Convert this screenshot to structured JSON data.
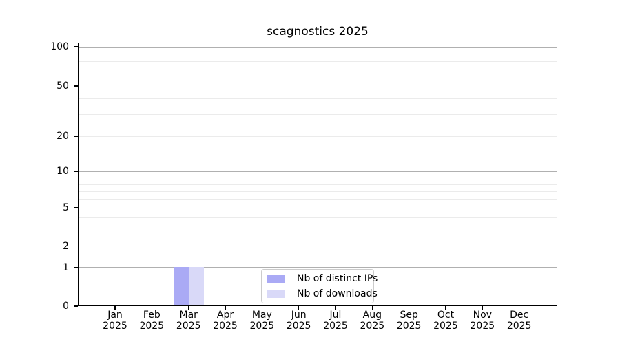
{
  "colors": {
    "distinct_ips": "#aaaaf5",
    "downloads": "#d9d9f8",
    "grid_major": "#b0b0b0",
    "grid_minor": "#ebebeb",
    "axis": "#000000"
  },
  "chart_data": {
    "type": "bar",
    "title": "scagnostics 2025",
    "categories": [
      "Jan 2025",
      "Feb 2025",
      "Mar 2025",
      "Apr 2025",
      "May 2025",
      "Jun 2025",
      "Jul 2025",
      "Aug 2025",
      "Sep 2025",
      "Oct 2025",
      "Nov 2025",
      "Dec 2025"
    ],
    "series": [
      {
        "name": "Nb of distinct IPs",
        "color": "#aaaaf5",
        "values": [
          0,
          0,
          1,
          0,
          0,
          0,
          0,
          0,
          0,
          0,
          0,
          0
        ]
      },
      {
        "name": "Nb of downloads",
        "color": "#d9d9f8",
        "values": [
          0,
          0,
          1,
          0,
          0,
          0,
          0,
          0,
          0,
          0,
          0,
          0
        ]
      }
    ],
    "xlabel": "",
    "ylabel": "",
    "y_axis": {
      "scale": "log-like",
      "tick_values": [
        0,
        1,
        2,
        5,
        10,
        20,
        50,
        100
      ],
      "ylim": [
        0,
        110
      ]
    },
    "grid": true,
    "legend_position": "inside-bottom-center"
  },
  "render": {
    "y_ticks": [
      {
        "label": "100",
        "pct": 1.5
      },
      {
        "label": "50",
        "pct": 16.5
      },
      {
        "label": "20",
        "pct": 35.5
      },
      {
        "label": "10",
        "pct": 48.8
      },
      {
        "label": "5",
        "pct": 62.6
      },
      {
        "label": "2",
        "pct": 77.2
      },
      {
        "label": "1",
        "pct": 85.4
      },
      {
        "label": "0",
        "pct": 100
      }
    ],
    "y_gridlines": [
      {
        "pct": 1.5,
        "major": true
      },
      {
        "pct": 3.9
      },
      {
        "pct": 6.7
      },
      {
        "pct": 9.8
      },
      {
        "pct": 13.1
      },
      {
        "pct": 16.5
      },
      {
        "pct": 20.9
      },
      {
        "pct": 27.0
      },
      {
        "pct": 35.5
      },
      {
        "pct": 48.8,
        "major": true
      },
      {
        "pct": 51.3
      },
      {
        "pct": 53.9
      },
      {
        "pct": 56.5
      },
      {
        "pct": 59.4
      },
      {
        "pct": 62.6
      },
      {
        "pct": 66.5
      },
      {
        "pct": 71.1
      },
      {
        "pct": 77.2
      },
      {
        "pct": 85.4,
        "major": true
      }
    ],
    "x_ticks_pct": [
      7.76,
      15.42,
      23.09,
      30.75,
      38.41,
      46.07,
      53.74,
      61.4,
      69.06,
      76.72,
      84.39,
      92.05
    ],
    "bar_width_pct": 3.11,
    "value_pct": {
      "1": 85.4
    }
  }
}
